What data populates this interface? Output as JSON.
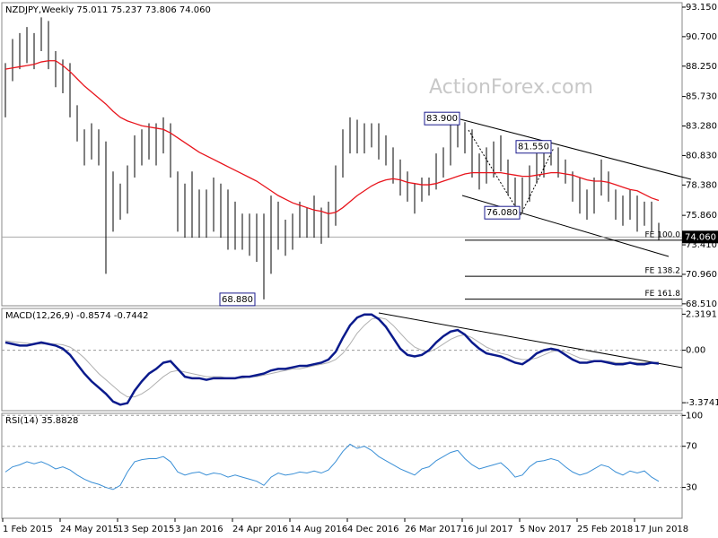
{
  "chart_data": [
    {
      "type": "ohlc",
      "title": "NZDJPY,Weekly  75.011 75.237 73.806 74.060",
      "watermark": "ActionForex.com",
      "categories": [
        "1 Feb 2015",
        null,
        null,
        null,
        null,
        null,
        null,
        null,
        "24 May 2015",
        null,
        null,
        null,
        null,
        null,
        null,
        null,
        "13 Sep 2015",
        null,
        null,
        null,
        null,
        null,
        null,
        null,
        "3 Jan 2016",
        null,
        null,
        null,
        null,
        null,
        null,
        null,
        "24 Apr 2016",
        null,
        null,
        null,
        null,
        null,
        null,
        null,
        "14 Aug 2016",
        null,
        null,
        null,
        null,
        null,
        null,
        null,
        "4 Dec 2016",
        null,
        null,
        null,
        null,
        null,
        null,
        null,
        "26 Mar 2017",
        null,
        null,
        null,
        null,
        null,
        null,
        null,
        "16 Jul 2017",
        null,
        null,
        null,
        null,
        null,
        null,
        null,
        "5 Nov 2017",
        null,
        null,
        null,
        null,
        null,
        null,
        null,
        "25 Feb 2018",
        null,
        null,
        null,
        null,
        null,
        null,
        null,
        "17 Jun 2018",
        null,
        null,
        null
      ],
      "color": "#000000",
      "high": [
        88.5,
        90.5,
        91,
        91.5,
        91,
        92.3,
        92,
        89.5,
        88.8,
        88.5,
        85,
        83,
        83.5,
        83,
        82,
        79.5,
        78.5,
        80,
        82.5,
        83,
        83.5,
        83.5,
        84,
        83.5,
        79.5,
        78.5,
        79.5,
        78,
        78,
        79,
        78.5,
        78,
        77,
        76,
        76,
        76,
        76,
        77.5,
        77,
        75.5,
        76,
        77,
        76.5,
        77.5,
        76.5,
        77,
        80,
        83,
        84,
        83.8,
        83.5,
        83.5,
        83.5,
        82.5,
        81.5,
        80.5,
        79.5,
        78.5,
        79,
        79,
        81,
        81.5,
        83.5,
        83.9,
        83.6,
        83,
        81,
        81.5,
        82,
        82.5,
        80.5,
        79,
        79,
        80,
        81.5,
        81.5,
        81.55,
        81.5,
        80.5,
        79.5,
        79,
        78,
        79,
        80.5,
        79.5,
        78,
        77.5,
        78,
        77.5,
        77,
        77,
        75.237
      ],
      "low": [
        84,
        87,
        88,
        88.5,
        88,
        89.5,
        88,
        86.5,
        86,
        84,
        82,
        80,
        80.5,
        80,
        71,
        74.5,
        75.5,
        76,
        79,
        80,
        80.5,
        80,
        81,
        79,
        74.5,
        74,
        74,
        74,
        74,
        74.5,
        74,
        73,
        73,
        73,
        72.5,
        72,
        68.88,
        71,
        73,
        72.5,
        73,
        74,
        74,
        74,
        73.5,
        74,
        75,
        79,
        81,
        81,
        81,
        81.5,
        80.5,
        80,
        78.5,
        77.5,
        77,
        76,
        77,
        77.5,
        78,
        79,
        80,
        81.5,
        81,
        79,
        78,
        78.5,
        79,
        79.5,
        77.5,
        76.5,
        76.08,
        77,
        78.5,
        79,
        80,
        79,
        78.5,
        77,
        76,
        75.5,
        76,
        77.5,
        77,
        75.5,
        75,
        75.5,
        74.5,
        75,
        74.5,
        73.806
      ],
      "ma": {
        "color": "#e8141c",
        "values": [
          88.0,
          88.1,
          88.2,
          88.3,
          88.4,
          88.6,
          88.7,
          88.7,
          88.3,
          87.8,
          87.2,
          86.6,
          86.1,
          85.6,
          85.1,
          84.5,
          84.0,
          83.7,
          83.5,
          83.3,
          83.2,
          83.1,
          83.0,
          82.7,
          82.3,
          81.9,
          81.5,
          81.1,
          80.8,
          80.5,
          80.2,
          79.9,
          79.6,
          79.3,
          79.0,
          78.7,
          78.3,
          77.9,
          77.5,
          77.2,
          76.9,
          76.7,
          76.5,
          76.3,
          76.2,
          76.0,
          76.1,
          76.5,
          77.0,
          77.5,
          77.9,
          78.3,
          78.6,
          78.8,
          78.9,
          78.8,
          78.6,
          78.5,
          78.4,
          78.4,
          78.5,
          78.7,
          78.9,
          79.1,
          79.3,
          79.4,
          79.4,
          79.4,
          79.4,
          79.4,
          79.3,
          79.2,
          79.1,
          79.1,
          79.2,
          79.3,
          79.4,
          79.4,
          79.3,
          79.2,
          79.0,
          78.8,
          78.7,
          78.7,
          78.6,
          78.4,
          78.2,
          78.0,
          77.9,
          77.6,
          77.3,
          77.1
        ]
      },
      "ylim": [
        68.35,
        93.52
      ],
      "yticks": [
        {
          "value": 68.51,
          "label": "68.510"
        },
        {
          "value": 70.96,
          "label": "70.960"
        },
        {
          "value": 73.41,
          "label": "73.410"
        },
        {
          "value": 75.86,
          "label": "75.860"
        },
        {
          "value": 78.38,
          "label": "78.380"
        },
        {
          "value": 80.83,
          "label": "80.830"
        },
        {
          "value": 83.28,
          "label": "83.280"
        },
        {
          "value": 85.73,
          "label": "85.730"
        },
        {
          "value": 88.25,
          "label": "88.250"
        },
        {
          "value": 90.7,
          "label": "90.700"
        },
        {
          "value": 93.15,
          "label": "93.150"
        }
      ],
      "last_price": {
        "value": 74.06,
        "label": "74.060"
      },
      "annotations": [
        {
          "value": 83.9,
          "label": "83.900"
        },
        {
          "value": 81.55,
          "label": "81.550"
        },
        {
          "value": 76.08,
          "label": "76.080"
        },
        {
          "value": 68.88,
          "label": "68.880"
        }
      ],
      "fib_levels": [
        {
          "value": 73.8,
          "label": "FE 100.0"
        },
        {
          "value": 70.8,
          "label": "FE 138.2"
        },
        {
          "value": 68.9,
          "label": "FE 161.8"
        }
      ]
    },
    {
      "type": "line",
      "title": "MACD(12,26,9) -0.8574 -0.7442",
      "series": [
        {
          "color": "#0a1a8c",
          "values": [
            0.5,
            0.4,
            0.3,
            0.3,
            0.4,
            0.5,
            0.4,
            0.3,
            0.1,
            -0.3,
            -0.9,
            -1.5,
            -2.0,
            -2.4,
            -2.8,
            -3.3,
            -3.5,
            -3.4,
            -2.6,
            -2.0,
            -1.5,
            -1.2,
            -0.8,
            -0.7,
            -1.2,
            -1.7,
            -1.8,
            -1.8,
            -1.9,
            -1.8,
            -1.8,
            -1.8,
            -1.8,
            -1.7,
            -1.7,
            -1.6,
            -1.5,
            -1.3,
            -1.2,
            -1.2,
            -1.1,
            -1.0,
            -1.0,
            -0.9,
            -0.8,
            -0.6,
            -0.1,
            0.8,
            1.6,
            2.1,
            2.3,
            2.3,
            2.0,
            1.5,
            0.8,
            0.1,
            -0.3,
            -0.4,
            -0.3,
            0.0,
            0.5,
            0.9,
            1.2,
            1.3,
            1.0,
            0.5,
            0.1,
            -0.2,
            -0.3,
            -0.4,
            -0.6,
            -0.8,
            -0.9,
            -0.6,
            -0.2,
            0.0,
            0.1,
            0.0,
            -0.3,
            -0.6,
            -0.8,
            -0.8,
            -0.7,
            -0.7,
            -0.8,
            -0.9,
            -0.9,
            -0.8,
            -0.9,
            -0.9,
            -0.8,
            -0.8574
          ]
        },
        {
          "color": "#b0b0b0",
          "values": [
            0.6,
            0.55,
            0.5,
            0.45,
            0.4,
            0.4,
            0.4,
            0.4,
            0.35,
            0.2,
            -0.1,
            -0.5,
            -1.0,
            -1.5,
            -1.9,
            -2.3,
            -2.7,
            -3.0,
            -3.0,
            -2.8,
            -2.5,
            -2.1,
            -1.7,
            -1.4,
            -1.3,
            -1.4,
            -1.5,
            -1.6,
            -1.7,
            -1.7,
            -1.7,
            -1.8,
            -1.8,
            -1.8,
            -1.7,
            -1.7,
            -1.6,
            -1.5,
            -1.4,
            -1.3,
            -1.2,
            -1.2,
            -1.1,
            -1.0,
            -0.9,
            -0.8,
            -0.6,
            -0.2,
            0.4,
            1.1,
            1.6,
            2.0,
            2.1,
            2.0,
            1.6,
            1.1,
            0.6,
            0.2,
            0.0,
            -0.1,
            0.1,
            0.4,
            0.7,
            0.9,
            1.0,
            0.8,
            0.5,
            0.2,
            0.0,
            -0.2,
            -0.3,
            -0.5,
            -0.6,
            -0.6,
            -0.5,
            -0.3,
            -0.1,
            0.0,
            -0.1,
            -0.3,
            -0.5,
            -0.6,
            -0.7,
            -0.7,
            -0.7,
            -0.8,
            -0.8,
            -0.8,
            -0.8,
            -0.8,
            -0.8,
            -0.7442
          ]
        }
      ],
      "ylim": [
        -3.886,
        2.686
      ],
      "yticks": [
        2.3191,
        {
          "value": 0,
          "label": "0.00"
        },
        -3.3741
      ]
    },
    {
      "type": "line",
      "title": "RSI(14) 35.8828",
      "series": [
        {
          "color": "#3a8fd6",
          "values": [
            45,
            50,
            52,
            55,
            53,
            55,
            52,
            48,
            50,
            47,
            42,
            38,
            35,
            33,
            30,
            28,
            32,
            45,
            55,
            57,
            58,
            58,
            60,
            55,
            45,
            42,
            44,
            45,
            42,
            44,
            43,
            40,
            42,
            40,
            38,
            36,
            32,
            40,
            44,
            42,
            43,
            45,
            44,
            46,
            44,
            47,
            55,
            65,
            72,
            68,
            70,
            66,
            60,
            56,
            52,
            48,
            45,
            42,
            48,
            50,
            56,
            60,
            64,
            66,
            58,
            52,
            48,
            50,
            52,
            54,
            48,
            40,
            42,
            50,
            55,
            56,
            58,
            56,
            50,
            45,
            42,
            44,
            48,
            52,
            50,
            45,
            42,
            46,
            44,
            46,
            40,
            35.8828
          ]
        }
      ],
      "ylim": [
        0,
        102
      ],
      "yticks": [
        100,
        70,
        30
      ]
    }
  ]
}
